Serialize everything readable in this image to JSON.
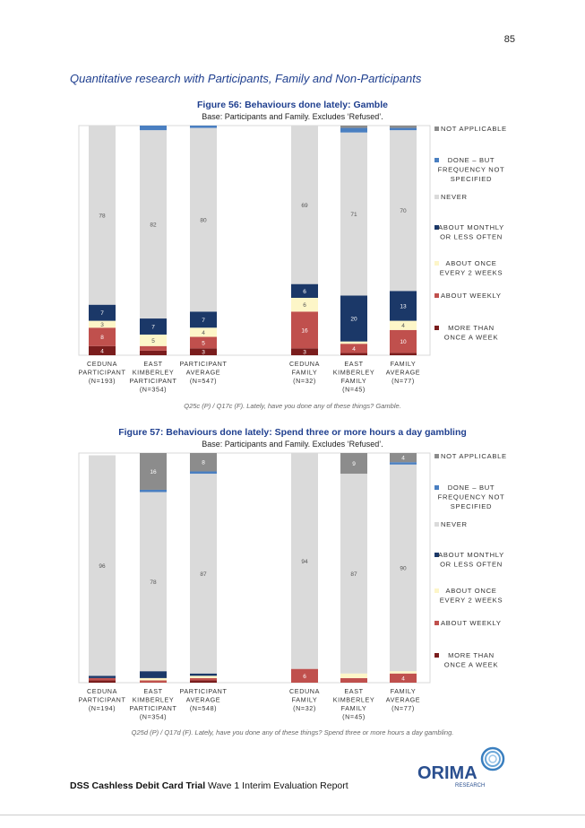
{
  "page": {
    "number": "85",
    "heading": "Quantitative research with Participants, Family and Non-Participants",
    "footer_bold": "DSS Cashless Debit Card Trial",
    "footer_rest": " Wave 1 Interim Evaluation Report",
    "logo_text": "ORIMA",
    "logo_sub": "RESEARCH"
  },
  "colors": {
    "not_applicable": "#8c8c8c",
    "done_unspecified": "#4a7fc1",
    "never": "#dadada",
    "monthly": "#1b3868",
    "fortnightly": "#fdf6c8",
    "weekly": "#c0504d",
    "more_than_weekly": "#7a1d1d"
  },
  "chart_data": [
    {
      "type": "bar",
      "stacked": true,
      "title": "Figure 56: Behaviours done lately: Gamble",
      "subtitle": "Base: Participants and Family. Excludes ‘Refused’.",
      "caption": "Q25c (P) / Q17c (F). Lately, have you done any of these things? Gamble.",
      "categories": [
        [
          "CEDUNA",
          "PARTICIPANT",
          "(N=193)"
        ],
        [
          "EAST",
          "KIMBERLEY",
          "PARTICIPANT",
          "(N=354)"
        ],
        [
          "PARTICIPANT",
          "AVERAGE",
          "(N=547)"
        ],
        [
          "CEDUNA",
          "FAMILY",
          "(N=32)"
        ],
        [
          "EAST",
          "KIMBERLEY",
          "FAMILY",
          "(N=45)"
        ],
        [
          "FAMILY",
          "AVERAGE",
          "(N=77)"
        ]
      ],
      "legend": [
        [
          "NOT APPLICABLE"
        ],
        [
          "DONE – BUT",
          "FREQUENCY NOT",
          "SPECIFIED"
        ],
        [
          "NEVER"
        ],
        [
          "ABOUT MONTHLY",
          "OR LESS OFTEN"
        ],
        [
          "ABOUT ONCE",
          "EVERY 2 WEEKS"
        ],
        [
          "ABOUT WEEKLY"
        ],
        [
          "MORE THAN",
          "ONCE A WEEK"
        ]
      ],
      "series": [
        {
          "name": "MORE THAN ONCE A WEEK",
          "values": [
            4,
            2,
            3,
            3,
            1,
            1
          ],
          "labels": [
            "4",
            "",
            "3",
            "3",
            "",
            ""
          ]
        },
        {
          "name": "ABOUT WEEKLY",
          "values": [
            8,
            2,
            5,
            16,
            4,
            10
          ],
          "labels": [
            "8",
            "",
            "5",
            "16",
            "4",
            "10"
          ]
        },
        {
          "name": "ABOUT ONCE EVERY 2 WEEKS",
          "values": [
            3,
            5,
            4,
            6,
            1,
            4
          ],
          "labels": [
            "3",
            "5",
            "4",
            "6",
            "",
            "4"
          ]
        },
        {
          "name": "ABOUT MONTHLY OR LESS OFTEN",
          "values": [
            7,
            7,
            7,
            6,
            20,
            13
          ],
          "labels": [
            "7",
            "7",
            "7",
            "6",
            "20",
            "13"
          ]
        },
        {
          "name": "NEVER",
          "values": [
            78,
            82,
            80,
            69,
            71,
            70
          ],
          "labels": [
            "78",
            "82",
            "80",
            "69",
            "71",
            "70"
          ]
        },
        {
          "name": "DONE – BUT FREQUENCY NOT SPECIFIED",
          "values": [
            0,
            2,
            1,
            0,
            2,
            1
          ],
          "labels": [
            "",
            "",
            "",
            "",
            "",
            ""
          ]
        },
        {
          "name": "NOT APPLICABLE",
          "values": [
            0,
            0,
            0,
            0,
            1,
            1
          ],
          "labels": [
            "",
            "",
            "",
            "",
            "",
            ""
          ]
        }
      ],
      "ylim": [
        0,
        100
      ]
    },
    {
      "type": "bar",
      "stacked": true,
      "title": "Figure 57: Behaviours done lately: Spend three or more hours a day gambling",
      "subtitle": "Base: Participants and Family. Excludes ‘Refused’.",
      "caption": "Q25d (P) / Q17d (F). Lately, have you done any of these things? Spend three or more hours a day gambling.",
      "categories": [
        [
          "CEDUNA",
          "PARTICIPANT",
          "(N=194)"
        ],
        [
          "EAST",
          "KIMBERLEY",
          "PARTICIPANT",
          "(N=354)"
        ],
        [
          "PARTICIPANT",
          "AVERAGE",
          "(N=548)"
        ],
        [
          "CEDUNA",
          "FAMILY",
          "(N=32)"
        ],
        [
          "EAST",
          "KIMBERLEY",
          "FAMILY",
          "(N=45)"
        ],
        [
          "FAMILY",
          "AVERAGE",
          "(N=77)"
        ]
      ],
      "legend": [
        [
          "NOT APPLICABLE"
        ],
        [
          "DONE – BUT",
          "FREQUENCY NOT",
          "SPECIFIED"
        ],
        [
          "NEVER"
        ],
        [
          "ABOUT MONTHLY",
          "OR LESS OFTEN"
        ],
        [
          "ABOUT ONCE",
          "EVERY 2 WEEKS"
        ],
        [
          "ABOUT WEEKLY"
        ],
        [
          "MORE THAN",
          "ONCE A WEEK"
        ]
      ],
      "series": [
        {
          "name": "MORE THAN ONCE A WEEK",
          "values": [
            1,
            0,
            1,
            0,
            0,
            0
          ],
          "labels": [
            "",
            "",
            "",
            "",
            "",
            ""
          ]
        },
        {
          "name": "ABOUT WEEKLY",
          "values": [
            1,
            1,
            1,
            6,
            2,
            4
          ],
          "labels": [
            "",
            "",
            "",
            "6",
            "",
            "4"
          ]
        },
        {
          "name": "ABOUT ONCE EVERY 2 WEEKS",
          "values": [
            0,
            1,
            1,
            0,
            2,
            1
          ],
          "labels": [
            "",
            "",
            "",
            "",
            "",
            ""
          ]
        },
        {
          "name": "ABOUT MONTHLY OR LESS OFTEN",
          "values": [
            1,
            3,
            1,
            0,
            0,
            0
          ],
          "labels": [
            "",
            "",
            "",
            "",
            "",
            ""
          ]
        },
        {
          "name": "NEVER",
          "values": [
            96,
            78,
            87,
            94,
            87,
            90
          ],
          "labels": [
            "96",
            "78",
            "87",
            "94",
            "87",
            "90"
          ]
        },
        {
          "name": "DONE – BUT FREQUENCY NOT SPECIFIED",
          "values": [
            0,
            1,
            1,
            0,
            0,
            1
          ],
          "labels": [
            "",
            "",
            "",
            "",
            "",
            ""
          ]
        },
        {
          "name": "NOT APPLICABLE",
          "values": [
            0,
            16,
            8,
            0,
            9,
            4
          ],
          "labels": [
            "",
            "16",
            "8",
            "",
            "9",
            "4"
          ]
        }
      ],
      "ylim": [
        0,
        100
      ]
    }
  ]
}
